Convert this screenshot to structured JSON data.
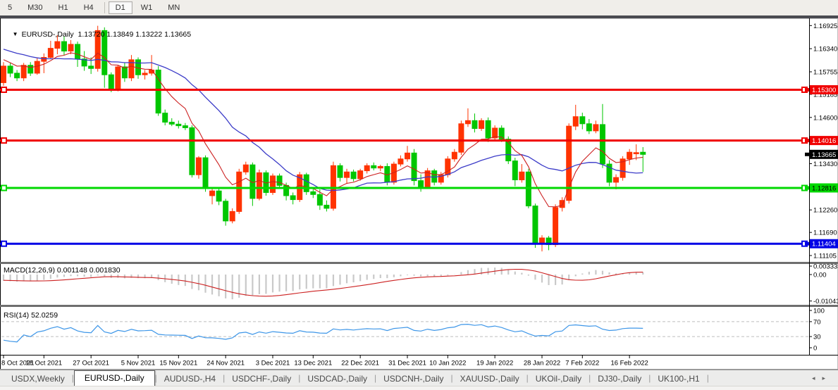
{
  "toolbar": {
    "timeframes": [
      {
        "label": "5",
        "active": false
      },
      {
        "label": "M30",
        "active": false
      },
      {
        "label": "H1",
        "active": false
      },
      {
        "label": "H4",
        "active": false
      },
      {
        "label": "D1",
        "active": true
      },
      {
        "label": "W1",
        "active": false
      },
      {
        "label": "MN",
        "active": false
      }
    ]
  },
  "main_title": {
    "dropdown_icon": "▼",
    "symbol": "EURUSD-,Daily",
    "ohlc_text": "1.13720 1.13849 1.13222 1.13665"
  },
  "macd_panel": {
    "title": "MACD(12,26,9) 0.001148 0.001830",
    "axis_labels": [
      {
        "v": 0.003331,
        "label": "0.003331"
      },
      {
        "v": 0,
        "label": "0.00"
      },
      {
        "v": -0.01043,
        "label": "-0.01043"
      }
    ]
  },
  "rsi_panel": {
    "title": "RSI(14) 52.0259",
    "axis_labels": [
      {
        "v": 100,
        "label": "100"
      },
      {
        "v": 70,
        "label": "70"
      },
      {
        "v": 30,
        "label": "30"
      },
      {
        "v": 0,
        "label": "0"
      }
    ],
    "dashed_levels": [
      70,
      30
    ]
  },
  "price_axis": {
    "ticks": [
      {
        "v": 1.16925,
        "label": "1.16925"
      },
      {
        "v": 1.1634,
        "label": "1.16340"
      },
      {
        "v": 1.15755,
        "label": "1.15755"
      },
      {
        "v": 1.15185,
        "label": "1.15185"
      },
      {
        "v": 1.146,
        "label": "1.14600"
      },
      {
        "v": 1.1343,
        "label": "1.13430"
      },
      {
        "v": 1.1226,
        "label": "1.12260"
      },
      {
        "v": 1.1169,
        "label": "1.11690"
      },
      {
        "v": 1.11105,
        "label": "1.11105"
      }
    ],
    "current_price_tag": {
      "v": 1.13665,
      "label": "1.13665",
      "bg": "#000000",
      "fg": "#ffffff"
    }
  },
  "chart_data": {
    "type": "candlestick",
    "title": "EURUSD-,Daily",
    "ylim": [
      1.1098,
      1.1702
    ],
    "grid": false,
    "bull_color": "#ff3300",
    "bear_color": "#00c600",
    "ohlc": [
      [
        1.1548,
        1.16,
        1.154,
        1.159
      ],
      [
        1.159,
        1.1598,
        1.1562,
        1.1572
      ],
      [
        1.1572,
        1.158,
        1.1552,
        1.156
      ],
      [
        1.156,
        1.1598,
        1.1552,
        1.1592
      ],
      [
        1.1592,
        1.16,
        1.1565,
        1.1572
      ],
      [
        1.1572,
        1.1612,
        1.1568,
        1.1602
      ],
      [
        1.1602,
        1.1622,
        1.1572,
        1.1612
      ],
      [
        1.1612,
        1.1654,
        1.1608,
        1.1635
      ],
      [
        1.1635,
        1.1668,
        1.162,
        1.1652
      ],
      [
        1.1652,
        1.1665,
        1.1618,
        1.1628
      ],
      [
        1.1628,
        1.1656,
        1.162,
        1.1645
      ],
      [
        1.1645,
        1.1652,
        1.1588,
        1.1608
      ],
      [
        1.1608,
        1.1628,
        1.1578,
        1.159
      ],
      [
        1.159,
        1.1612,
        1.157,
        1.1584
      ],
      [
        1.1584,
        1.1692,
        1.1576,
        1.168
      ],
      [
        1.168,
        1.1688,
        1.1535,
        1.1568
      ],
      [
        1.1568,
        1.1574,
        1.1524,
        1.1532
      ],
      [
        1.1532,
        1.1592,
        1.1526,
        1.1588
      ],
      [
        1.1588,
        1.1598,
        1.155,
        1.156
      ],
      [
        1.156,
        1.1618,
        1.1552,
        1.1606
      ],
      [
        1.1606,
        1.1612,
        1.1558,
        1.1568
      ],
      [
        1.1568,
        1.158,
        1.1556,
        1.1572
      ],
      [
        1.1572,
        1.1618,
        1.1566,
        1.158
      ],
      [
        1.158,
        1.159,
        1.1464,
        1.1471
      ],
      [
        1.1471,
        1.148,
        1.144,
        1.1448
      ],
      [
        1.1448,
        1.1458,
        1.1438,
        1.1443
      ],
      [
        1.1443,
        1.1452,
        1.1432,
        1.1439
      ],
      [
        1.1439,
        1.1446,
        1.1428,
        1.1434
      ],
      [
        1.1434,
        1.144,
        1.1308,
        1.1315
      ],
      [
        1.1315,
        1.1362,
        1.1305,
        1.1358
      ],
      [
        1.1358,
        1.1364,
        1.1272,
        1.128
      ],
      [
        1.1262,
        1.128,
        1.124,
        1.1274
      ],
      [
        1.1274,
        1.128,
        1.1238,
        1.1248
      ],
      [
        1.1248,
        1.1254,
        1.1186,
        1.1198
      ],
      [
        1.1198,
        1.123,
        1.1192,
        1.1222
      ],
      [
        1.1222,
        1.133,
        1.1216,
        1.1322
      ],
      [
        1.1322,
        1.1348,
        1.1315,
        1.134
      ],
      [
        1.134,
        1.1346,
        1.1236,
        1.1255
      ],
      [
        1.1255,
        1.1328,
        1.125,
        1.132
      ],
      [
        1.132,
        1.1326,
        1.1262,
        1.127
      ],
      [
        1.127,
        1.1318,
        1.1264,
        1.1312
      ],
      [
        1.1312,
        1.1318,
        1.1282,
        1.1288
      ],
      [
        1.1288,
        1.1295,
        1.125,
        1.1262
      ],
      [
        1.1262,
        1.127,
        1.124,
        1.1252
      ],
      [
        1.1252,
        1.1322,
        1.1246,
        1.1315
      ],
      [
        1.1315,
        1.132,
        1.1264,
        1.1272
      ],
      [
        1.1272,
        1.1284,
        1.1256,
        1.1265
      ],
      [
        1.1265,
        1.1278,
        1.1226,
        1.1238
      ],
      [
        1.1238,
        1.125,
        1.1222,
        1.123
      ],
      [
        1.123,
        1.1348,
        1.1224,
        1.1338
      ],
      [
        1.1338,
        1.1344,
        1.1298,
        1.1308
      ],
      [
        1.1308,
        1.133,
        1.1292,
        1.1322
      ],
      [
        1.1322,
        1.1328,
        1.1298,
        1.1305
      ],
      [
        1.1305,
        1.133,
        1.13,
        1.1325
      ],
      [
        1.1325,
        1.1344,
        1.1318,
        1.1338
      ],
      [
        1.1338,
        1.1346,
        1.1326,
        1.1332
      ],
      [
        1.1332,
        1.134,
        1.1324,
        1.1336
      ],
      [
        1.1336,
        1.1344,
        1.1288,
        1.1296
      ],
      [
        1.1296,
        1.1348,
        1.129,
        1.1342
      ],
      [
        1.1342,
        1.1364,
        1.1336,
        1.1355
      ],
      [
        1.1355,
        1.1388,
        1.1348,
        1.137
      ],
      [
        1.137,
        1.138,
        1.1288,
        1.13
      ],
      [
        1.13,
        1.1316,
        1.1272,
        1.1285
      ],
      [
        1.1285,
        1.1332,
        1.128,
        1.1325
      ],
      [
        1.1325,
        1.133,
        1.1288,
        1.1296
      ],
      [
        1.1296,
        1.1322,
        1.129,
        1.1315
      ],
      [
        1.1315,
        1.1362,
        1.1308,
        1.1355
      ],
      [
        1.1355,
        1.138,
        1.1348,
        1.1372
      ],
      [
        1.1372,
        1.1452,
        1.1365,
        1.1444
      ],
      [
        1.1444,
        1.1483,
        1.1436,
        1.1452
      ],
      [
        1.1452,
        1.147,
        1.1422,
        1.1432
      ],
      [
        1.1432,
        1.1458,
        1.1426,
        1.1452
      ],
      [
        1.1452,
        1.146,
        1.1398,
        1.1408
      ],
      [
        1.1408,
        1.144,
        1.14,
        1.1433
      ],
      [
        1.1433,
        1.144,
        1.1398,
        1.1405
      ],
      [
        1.1405,
        1.1412,
        1.1342,
        1.135
      ],
      [
        1.135,
        1.1358,
        1.1286,
        1.1302
      ],
      [
        1.1302,
        1.1342,
        1.1295,
        1.1322
      ],
      [
        1.1322,
        1.133,
        1.123,
        1.1236
      ],
      [
        1.1236,
        1.1242,
        1.113,
        1.1142
      ],
      [
        1.1142,
        1.1162,
        1.1121,
        1.1155
      ],
      [
        1.1155,
        1.116,
        1.1124,
        1.1138
      ],
      [
        1.1138,
        1.124,
        1.1132,
        1.1232
      ],
      [
        1.1232,
        1.1258,
        1.1222,
        1.125
      ],
      [
        1.125,
        1.1445,
        1.1242,
        1.1438
      ],
      [
        1.1438,
        1.1492,
        1.1428,
        1.1462
      ],
      [
        1.1462,
        1.1472,
        1.143,
        1.1444
      ],
      [
        1.1444,
        1.1456,
        1.1418,
        1.1426
      ],
      [
        1.1426,
        1.1452,
        1.142,
        1.1442
      ],
      [
        1.1442,
        1.1494,
        1.1332,
        1.1342
      ],
      [
        1.1342,
        1.1352,
        1.1286,
        1.1296
      ],
      [
        1.1296,
        1.1316,
        1.1278,
        1.1308
      ],
      [
        1.1308,
        1.1362,
        1.13,
        1.1355
      ],
      [
        1.1355,
        1.138,
        1.134,
        1.1372
      ],
      [
        1.1368,
        1.1392,
        1.1352,
        1.1371
      ],
      [
        1.1372,
        1.13849,
        1.13222,
        1.13665
      ]
    ],
    "overlays": [
      {
        "name": "ma-slow",
        "type": "sma",
        "period": 20,
        "color": "#3c3cc8"
      },
      {
        "name": "ma-fast",
        "type": "ema",
        "period": 8,
        "color": "#cc2020"
      }
    ],
    "levels": [
      {
        "price": 1.153,
        "label": "1.15300",
        "color": "#f00000",
        "tag_bg": "#f00000",
        "tag_fg": "#ffffff"
      },
      {
        "price": 1.14016,
        "label": "1.14016",
        "color": "#f00000",
        "tag_bg": "#f00000",
        "tag_fg": "#ffffff"
      },
      {
        "price": 1.12816,
        "label": "1.12816",
        "color": "#00d800",
        "tag_bg": "#00d800",
        "tag_fg": "#000000"
      },
      {
        "price": 1.11404,
        "label": "1.11404",
        "color": "#0000e6",
        "tag_bg": "#0000e6",
        "tag_fg": "#ffffff"
      }
    ],
    "x_ticks": [
      {
        "i": 0,
        "label": "8 Oct 2021"
      },
      {
        "i": 6,
        "label": "18 Oct 2021"
      },
      {
        "i": 13,
        "label": "27 Oct 2021"
      },
      {
        "i": 20,
        "label": "5 Nov 2021"
      },
      {
        "i": 26,
        "label": "15 Nov 2021"
      },
      {
        "i": 33,
        "label": "24 Nov 2021"
      },
      {
        "i": 40,
        "label": "3 Dec 2021"
      },
      {
        "i": 46,
        "label": "13 Dec 2021"
      },
      {
        "i": 53,
        "label": "22 Dec 2021"
      },
      {
        "i": 60,
        "label": "31 Dec 2021"
      },
      {
        "i": 66,
        "label": "10 Jan 2022"
      },
      {
        "i": 73,
        "label": "19 Jan 2022"
      },
      {
        "i": 80,
        "label": "28 Jan 2022"
      },
      {
        "i": 86,
        "label": "7 Feb 2022"
      },
      {
        "i": 93,
        "label": "16 Feb 2022"
      }
    ],
    "indicators": [
      {
        "name": "macd",
        "params": [
          12,
          26,
          9
        ],
        "histogram_color": "#c9c9c9",
        "signal_color": "#cc2020",
        "ylim": [
          -0.01195,
          0.00417
        ]
      },
      {
        "name": "rsi",
        "params": [
          14
        ],
        "line_color": "#3d96e8",
        "ylim": [
          0,
          100
        ]
      }
    ]
  },
  "tabbar": {
    "tabs": [
      {
        "label": "USDX,Weekly",
        "active": false
      },
      {
        "label": "EURUSD-,Daily",
        "active": true
      },
      {
        "label": "AUDUSD-,H4",
        "active": false
      },
      {
        "label": "USDCHF-,Daily",
        "active": false
      },
      {
        "label": "USDCAD-,Daily",
        "active": false
      },
      {
        "label": "USDCNH-,Daily",
        "active": false
      },
      {
        "label": "XAUUSD-,Daily",
        "active": false
      },
      {
        "label": "UKOil-,Daily",
        "active": false
      },
      {
        "label": "DJ30-,Daily",
        "active": false
      },
      {
        "label": "UK100-,H1",
        "active": false
      }
    ],
    "scroll_left_icon": "◂",
    "scroll_right_icon": "▸"
  }
}
